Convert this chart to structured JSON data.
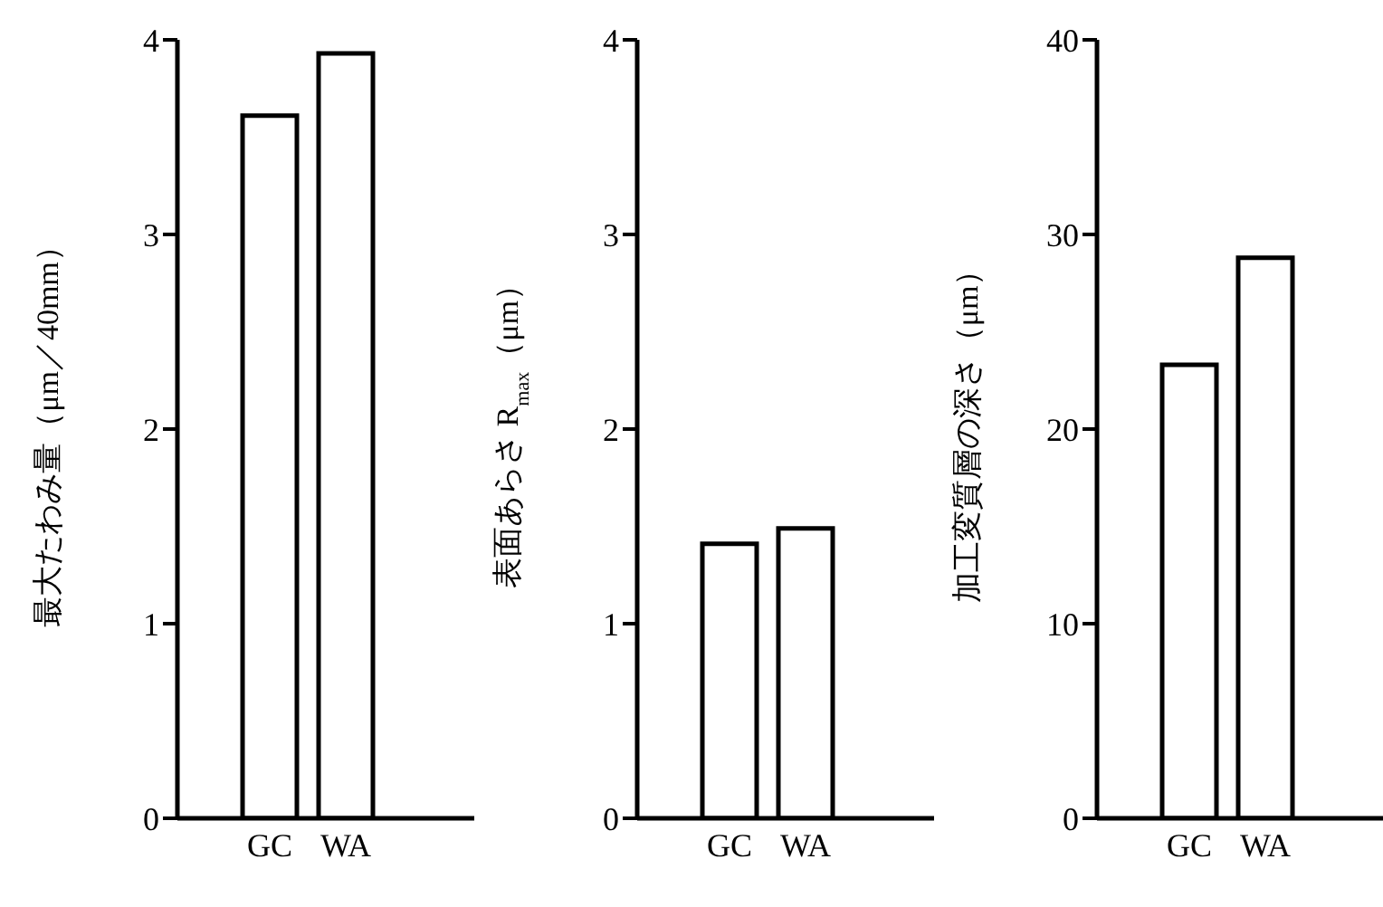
{
  "chart_data": [
    {
      "type": "bar",
      "categories": [
        "GC",
        "WA"
      ],
      "values": [
        3.61,
        3.93
      ],
      "colors": [
        "#ffffff",
        "#ffffff"
      ],
      "ylabel": "最大たわみ量（μm／40mm）",
      "ylim": [
        0,
        4
      ],
      "yticks": [
        0,
        1,
        2,
        3,
        4
      ],
      "grid": false,
      "legend": false
    },
    {
      "type": "bar",
      "categories": [
        "GC",
        "WA"
      ],
      "values": [
        1.41,
        1.49
      ],
      "colors": [
        "#ffffff",
        "#ffffff"
      ],
      "ylabel": "表面あらさ R$_{max}$（μm）",
      "ylim": [
        0,
        4
      ],
      "yticks": [
        0,
        1,
        2,
        3,
        4
      ],
      "grid": false,
      "legend": false
    },
    {
      "type": "bar",
      "categories": [
        "GC",
        "WA"
      ],
      "values": [
        23.3,
        28.8
      ],
      "colors": [
        "#ffffff",
        "#ffffff"
      ],
      "ylabel": "加工変質層の深さ（μm）",
      "ylim": [
        0,
        40
      ],
      "yticks": [
        0,
        10,
        20,
        30,
        40
      ],
      "grid": false,
      "legend": false
    }
  ]
}
